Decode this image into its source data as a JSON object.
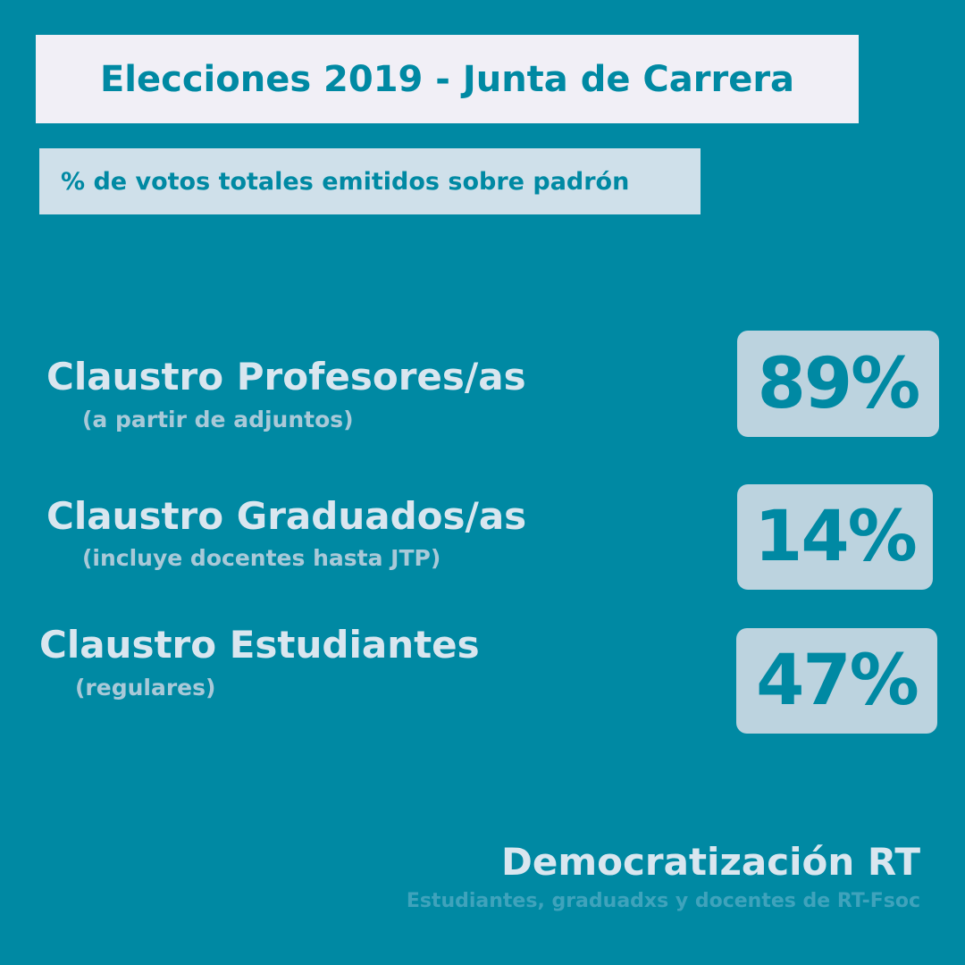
{
  "header": {
    "title": "Elecciones 2019 - Junta de Carrera",
    "subtitle": "% de votos totales emitidos sobre padrón"
  },
  "claustros": [
    {
      "name": "Claustro Profesores/as",
      "note": "(a partir de adjuntos)",
      "percent": "89%"
    },
    {
      "name": "Claustro Graduados/as",
      "note": "(incluye docentes hasta JTP)",
      "percent": "14%"
    },
    {
      "name": "Claustro Estudiantes",
      "note": "(regulares)",
      "percent": "47%"
    }
  ],
  "footer": {
    "brand": "Democratización RT",
    "tagline": "Estudiantes, graduadxs y docentes de RT-Fsoc"
  },
  "colors": {
    "background": "#0089a3",
    "title_box": "#f1eff6",
    "subtitle_box": "#cfe0ea",
    "percent_box": "#bcd3df"
  }
}
